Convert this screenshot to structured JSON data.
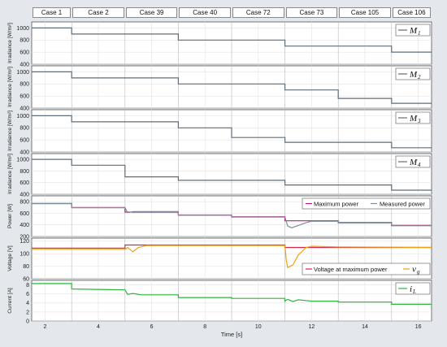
{
  "case_labels": [
    "Case 1",
    "Case 2",
    "Case 39",
    "Case 40",
    "Case 72",
    "Case 73",
    "Case 105",
    "Case 106"
  ],
  "case_boundaries": [
    1.5,
    3,
    5,
    7,
    9,
    11,
    13,
    15,
    16.5
  ],
  "x_axis": {
    "xlim": [
      1.5,
      16.5
    ],
    "ticks": [
      2,
      4,
      6,
      8,
      10,
      12,
      14,
      16
    ],
    "label": "Time [s]"
  },
  "colors": {
    "irradiance": "#5d6d7a",
    "max_power": "#c2187a",
    "measured_power": "#7d8e9c",
    "voltage_mpp": "#d8274a",
    "vg": "#f2a114",
    "current": "#2fb43f"
  },
  "chart_data": [
    {
      "type": "line",
      "id": "M1",
      "ylabel": "Irradiance [W/m²]",
      "ylim": [
        400,
        1100
      ],
      "yticks": [
        400,
        600,
        800,
        1000
      ],
      "legend": "M",
      "legend_sub": "1",
      "series": [
        {
          "name": "M1",
          "x": [
            1.5,
            3,
            3,
            7,
            7,
            11,
            11,
            15,
            15,
            16.5
          ],
          "values": [
            1000,
            1000,
            900,
            900,
            800,
            800,
            700,
            700,
            600,
            600
          ]
        }
      ]
    },
    {
      "type": "line",
      "id": "M2",
      "ylabel": "Irradiance [W/m²]",
      "ylim": [
        400,
        1100
      ],
      "yticks": [
        400,
        600,
        800,
        1000
      ],
      "legend": "M",
      "legend_sub": "2",
      "series": [
        {
          "name": "M2",
          "x": [
            1.5,
            3,
            3,
            7,
            7,
            11,
            11,
            13,
            13,
            15,
            15,
            16.5
          ],
          "values": [
            1000,
            1000,
            900,
            900,
            800,
            800,
            700,
            700,
            560,
            560,
            480,
            480
          ]
        }
      ]
    },
    {
      "type": "line",
      "id": "M3",
      "ylabel": "Irradiance [W/m²]",
      "ylim": [
        400,
        1100
      ],
      "yticks": [
        400,
        600,
        800,
        1000
      ],
      "legend": "M",
      "legend_sub": "3",
      "series": [
        {
          "name": "M3",
          "x": [
            1.5,
            3,
            3,
            7,
            7,
            9,
            9,
            11,
            11,
            15,
            15,
            16.5
          ],
          "values": [
            1000,
            1000,
            900,
            900,
            800,
            800,
            640,
            640,
            560,
            560,
            470,
            470
          ]
        }
      ]
    },
    {
      "type": "line",
      "id": "M4",
      "ylabel": "Irradiance [W/m²]",
      "ylim": [
        400,
        1100
      ],
      "yticks": [
        400,
        600,
        800,
        1000
      ],
      "legend": "M",
      "legend_sub": "4",
      "series": [
        {
          "name": "M4",
          "x": [
            1.5,
            3,
            3,
            5,
            5,
            7,
            7,
            11,
            11,
            15,
            15,
            16.5
          ],
          "values": [
            1000,
            1000,
            900,
            900,
            700,
            700,
            640,
            640,
            560,
            560,
            470,
            470
          ]
        }
      ]
    },
    {
      "type": "line",
      "id": "power",
      "ylabel": "Power [W]",
      "ylim": [
        200,
        900
      ],
      "yticks": [
        200,
        400,
        600,
        800
      ],
      "legend_entries": [
        "Maximum power",
        "Measured power"
      ],
      "series": [
        {
          "name": "Maximum power",
          "x": [
            1.5,
            3,
            3,
            5,
            5,
            7,
            7,
            9,
            9,
            11,
            11,
            13,
            13,
            15,
            15,
            16.5
          ],
          "values": [
            770,
            770,
            700,
            700,
            620,
            620,
            570,
            570,
            540,
            540,
            470,
            470,
            440,
            440,
            390,
            390
          ]
        },
        {
          "name": "Measured power",
          "x": [
            1.5,
            3,
            3,
            5,
            5.1,
            5.3,
            7,
            7,
            9,
            9,
            11,
            11.1,
            11.25,
            11.5,
            11.8,
            12,
            13,
            13,
            15,
            15,
            16.5
          ],
          "values": [
            765,
            765,
            695,
            695,
            610,
            630,
            630,
            565,
            565,
            535,
            535,
            380,
            350,
            390,
            440,
            462,
            462,
            432,
            432,
            385,
            385
          ]
        }
      ]
    },
    {
      "type": "line",
      "id": "voltage",
      "ylabel": "Voltage [V]",
      "ylim": [
        60,
        125
      ],
      "yticks": [
        60,
        80,
        100,
        120
      ],
      "legend_entries": [
        "Voltage at maximum power",
        "v",
        "g"
      ],
      "series": [
        {
          "name": "Voltage at maximum power",
          "x": [
            1.5,
            5,
            5,
            11,
            11,
            16.5
          ],
          "values": [
            109,
            109,
            114,
            114,
            110,
            110
          ]
        },
        {
          "name": "vg",
          "x": [
            1.5,
            5,
            5.1,
            5.3,
            5.5,
            5.8,
            6.2,
            7,
            9,
            11,
            11.05,
            11.1,
            11.3,
            11.5,
            11.8,
            12,
            13,
            16.5
          ],
          "values": [
            107,
            107,
            110,
            103,
            110,
            113,
            113,
            113,
            113,
            113,
            90,
            78,
            82,
            98,
            110,
            112,
            111,
            110
          ]
        }
      ]
    },
    {
      "type": "line",
      "id": "current",
      "ylabel": "Current [A]",
      "ylim": [
        0,
        9
      ],
      "yticks": [
        0,
        2,
        4,
        6,
        8
      ],
      "legend": "i",
      "legend_sub": "L",
      "series": [
        {
          "name": "iL",
          "x": [
            1.5,
            3,
            3,
            5,
            5,
            5.1,
            5.3,
            5.6,
            7,
            7,
            9,
            9,
            11,
            11,
            11.1,
            11.3,
            11.5,
            12,
            13,
            13,
            15,
            15,
            16.5
          ],
          "values": [
            8.3,
            8.3,
            7.1,
            6.9,
            6.9,
            5.9,
            6.1,
            5.8,
            5.8,
            5.2,
            5.2,
            5.0,
            5.0,
            4.4,
            4.8,
            4.3,
            4.7,
            4.4,
            4.4,
            4.2,
            4.2,
            3.7,
            3.7
          ]
        }
      ]
    }
  ]
}
